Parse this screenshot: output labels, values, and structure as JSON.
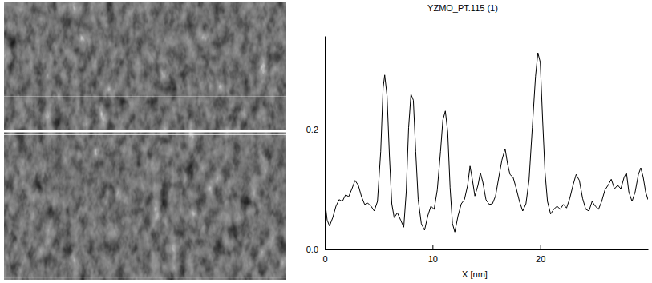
{
  "chart_data": {
    "type": "line",
    "title": "YZMO_PT.115 (1)",
    "x_label": "X [nm]",
    "x": [
      0.0,
      0.22,
      0.44,
      0.74,
      1.04,
      1.33,
      1.63,
      1.93,
      2.22,
      2.52,
      2.81,
      3.11,
      3.41,
      3.7,
      4.0,
      4.3,
      4.59,
      4.89,
      5.19,
      5.41,
      5.56,
      5.78,
      6.0,
      6.22,
      6.44,
      6.74,
      7.04,
      7.33,
      7.56,
      7.78,
      8.0,
      8.22,
      8.44,
      8.67,
      8.96,
      9.26,
      9.56,
      9.85,
      10.15,
      10.44,
      10.74,
      10.96,
      11.19,
      11.41,
      11.63,
      11.85,
      12.07,
      12.37,
      12.67,
      12.96,
      13.26,
      13.48,
      13.7,
      13.93,
      14.22,
      14.44,
      14.67,
      14.96,
      15.26,
      15.56,
      15.85,
      16.15,
      16.44,
      16.74,
      16.96,
      17.19,
      17.48,
      17.78,
      18.07,
      18.37,
      18.67,
      18.96,
      19.26,
      19.56,
      19.78,
      20.0,
      20.22,
      20.44,
      20.67,
      20.96,
      21.26,
      21.56,
      21.85,
      22.15,
      22.44,
      22.74,
      23.04,
      23.33,
      23.63,
      23.93,
      24.22,
      24.52,
      24.81,
      25.11,
      25.41,
      25.7,
      26.0,
      26.3,
      26.59,
      26.89,
      27.19,
      27.48,
      27.78,
      28.0,
      28.22,
      28.52,
      28.81,
      29.11,
      29.33,
      29.56,
      29.78,
      30.0
    ],
    "values": [
      0.083,
      0.049,
      0.039,
      0.053,
      0.072,
      0.083,
      0.08,
      0.091,
      0.088,
      0.101,
      0.115,
      0.107,
      0.088,
      0.075,
      0.077,
      0.072,
      0.064,
      0.08,
      0.163,
      0.269,
      0.291,
      0.256,
      0.156,
      0.076,
      0.053,
      0.061,
      0.049,
      0.037,
      0.096,
      0.203,
      0.259,
      0.249,
      0.163,
      0.083,
      0.043,
      0.032,
      0.056,
      0.072,
      0.067,
      0.099,
      0.163,
      0.216,
      0.231,
      0.196,
      0.103,
      0.043,
      0.029,
      0.056,
      0.076,
      0.083,
      0.107,
      0.139,
      0.116,
      0.089,
      0.107,
      0.128,
      0.112,
      0.083,
      0.075,
      0.076,
      0.089,
      0.12,
      0.149,
      0.168,
      0.143,
      0.125,
      0.12,
      0.101,
      0.08,
      0.064,
      0.076,
      0.116,
      0.203,
      0.289,
      0.328,
      0.312,
      0.216,
      0.129,
      0.08,
      0.059,
      0.067,
      0.072,
      0.067,
      0.075,
      0.069,
      0.085,
      0.107,
      0.125,
      0.115,
      0.085,
      0.067,
      0.064,
      0.08,
      0.072,
      0.067,
      0.08,
      0.099,
      0.107,
      0.117,
      0.101,
      0.107,
      0.101,
      0.12,
      0.128,
      0.096,
      0.08,
      0.096,
      0.125,
      0.136,
      0.12,
      0.096,
      0.083
    ],
    "color": "#000000",
    "xlim": [
      0,
      30
    ],
    "xticks": [
      0,
      10,
      20
    ],
    "ylim": [
      0,
      0.356
    ],
    "yticks": [
      {
        "value": 0,
        "label": "0.0"
      },
      {
        "value": 0.2,
        "label": "0.2"
      }
    ]
  }
}
